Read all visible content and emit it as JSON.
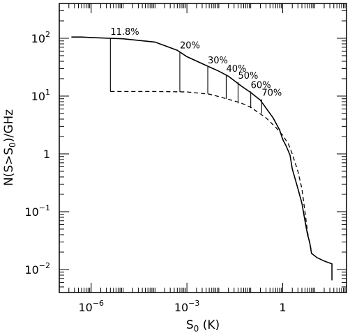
{
  "chart_data": {
    "type": "line",
    "xscale": "log",
    "yscale": "log",
    "xlim": [
      1e-07,
      100
    ],
    "ylim": [
      0.004,
      400
    ],
    "xlabel": {
      "base": "S",
      "sub": "0",
      "rest": " (K)"
    },
    "ylabel": {
      "pre": "N(S>S",
      "sub": "0",
      "post": ")/GHz"
    },
    "xticks": [
      {
        "value": 1e-06,
        "base": "10",
        "exp": "−6"
      },
      {
        "value": 0.001,
        "base": "10",
        "exp": "−3"
      },
      {
        "value": 1,
        "base": "1",
        "exp": ""
      }
    ],
    "yticks": [
      {
        "value": 0.01,
        "base": "10",
        "exp": "−2"
      },
      {
        "value": 0.1,
        "base": "10",
        "exp": "−1"
      },
      {
        "value": 1,
        "base": "1",
        "exp": ""
      },
      {
        "value": 10,
        "base": "10",
        "exp": "1"
      },
      {
        "value": 100,
        "base": "10",
        "exp": "2"
      }
    ],
    "series": [
      {
        "style": "solid",
        "points": [
          [
            2.4e-07,
            105
          ],
          [
            5e-07,
            105
          ],
          [
            1e-06,
            103
          ],
          [
            1e-05,
            98
          ],
          [
            0.0001,
            86
          ],
          [
            0.0005,
            62
          ],
          [
            0.001,
            48
          ],
          [
            0.005,
            32
          ],
          [
            0.01,
            27
          ],
          [
            0.02,
            22
          ],
          [
            0.05,
            15
          ],
          [
            0.1,
            11.5
          ],
          [
            0.2,
            8.5
          ],
          [
            0.5,
            4.2
          ],
          [
            0.8,
            2.6
          ],
          [
            1,
            1.8
          ],
          [
            1.3,
            1.35
          ],
          [
            1.7,
            0.95
          ],
          [
            2,
            0.55
          ],
          [
            3,
            0.25
          ],
          [
            4,
            0.14
          ],
          [
            5,
            0.07
          ],
          [
            6,
            0.04
          ],
          [
            7,
            0.03
          ],
          [
            8,
            0.019
          ],
          [
            12,
            0.016
          ],
          [
            20,
            0.014
          ],
          [
            35,
            0.0125
          ],
          [
            35,
            0.0065
          ]
        ]
      },
      {
        "style": "dashed",
        "points": [
          [
            4e-06,
            12
          ],
          [
            1e-05,
            12
          ],
          [
            0.0001,
            12
          ],
          [
            0.001,
            11.8
          ],
          [
            0.005,
            10.8
          ],
          [
            0.01,
            9.8
          ],
          [
            0.05,
            7.6
          ],
          [
            0.1,
            6.4
          ],
          [
            0.3,
            4.2
          ],
          [
            0.6,
            2.9
          ],
          [
            1,
            2.1
          ],
          [
            1.5,
            1.5
          ],
          [
            2,
            1.0
          ],
          [
            3,
            0.5
          ],
          [
            4,
            0.25
          ],
          [
            5,
            0.1
          ],
          [
            6,
            0.045
          ],
          [
            7,
            0.028
          ],
          [
            8,
            0.021
          ]
        ]
      }
    ],
    "verticals": [
      {
        "x": 4e-06,
        "y_top": 100,
        "y_bottom": 12,
        "label": "11.8%"
      },
      {
        "x": 0.0006,
        "y_top": 58,
        "y_bottom": 11.8,
        "label": "20%"
      },
      {
        "x": 0.0045,
        "y_top": 32,
        "y_bottom": 11.0,
        "label": "30%"
      },
      {
        "x": 0.017,
        "y_top": 23,
        "y_bottom": 9.0,
        "label": "40%"
      },
      {
        "x": 0.04,
        "y_top": 17.5,
        "y_bottom": 7.5,
        "label": "50%"
      },
      {
        "x": 0.1,
        "y_top": 12,
        "y_bottom": 6.2,
        "label": "60%"
      },
      {
        "x": 0.22,
        "y_top": 8.8,
        "y_bottom": 5.0,
        "label": "70%"
      }
    ]
  }
}
